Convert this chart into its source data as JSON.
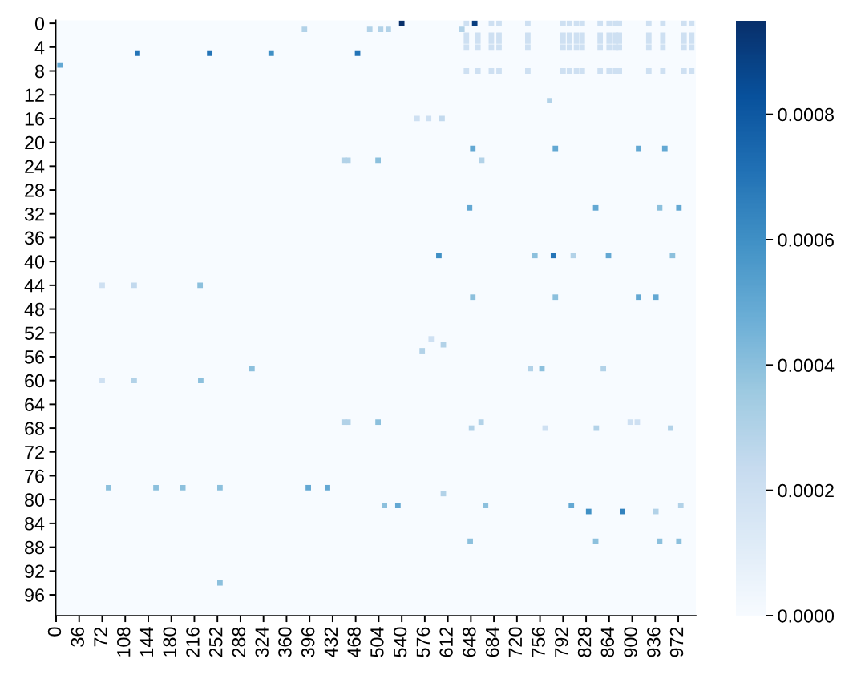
{
  "chart_data": {
    "type": "scatter",
    "marker": "square",
    "x": [
      641,
      680,
      692,
      737,
      792,
      802,
      813,
      822,
      850,
      864,
      874,
      880,
      926,
      948,
      981,
      993,
      641,
      659,
      680,
      692,
      737,
      792,
      802,
      813,
      822,
      850,
      864,
      874,
      880,
      926,
      948,
      981,
      993,
      641,
      659,
      680,
      692,
      737,
      792,
      802,
      813,
      822,
      850,
      864,
      874,
      880,
      926,
      948,
      981,
      993,
      641,
      659,
      680,
      692,
      737,
      792,
      802,
      813,
      822,
      850,
      864,
      874,
      880,
      926,
      948,
      981,
      993,
      641,
      659,
      680,
      692,
      737,
      792,
      802,
      813,
      822,
      850,
      864,
      874,
      880,
      926,
      948,
      981,
      993,
      127,
      240,
      336,
      6,
      225,
      122,
      72,
      540,
      654,
      471,
      388,
      490,
      507,
      519,
      634,
      651,
      503,
      450,
      456,
      603,
      646,
      598,
      651,
      665,
      564,
      582,
      780,
      910,
      951,
      843,
      943,
      973,
      777,
      748,
      808,
      863,
      963,
      780,
      910,
      937,
      771,
      122,
      226,
      72,
      306,
      82,
      156,
      198,
      256,
      256,
      450,
      456,
      503,
      649,
      664,
      394,
      424,
      513,
      534,
      671,
      647,
      605,
      572,
      605,
      586,
      741,
      759,
      855,
      805,
      832,
      885,
      937,
      976,
      843,
      943,
      973,
      897,
      908,
      764,
      844,
      960
    ],
    "values": [
      0,
      0,
      0,
      0,
      0,
      0,
      0,
      0,
      0,
      0,
      0,
      0,
      0,
      0,
      0,
      0,
      2,
      2,
      2,
      2,
      2,
      2,
      2,
      2,
      2,
      2,
      2,
      2,
      2,
      2,
      2,
      2,
      2,
      3,
      3,
      3,
      3,
      3,
      3,
      3,
      3,
      3,
      3,
      3,
      3,
      3,
      3,
      3,
      3,
      3,
      4,
      4,
      4,
      4,
      4,
      4,
      4,
      4,
      4,
      4,
      4,
      4,
      4,
      4,
      4,
      4,
      4,
      8,
      8,
      8,
      8,
      8,
      8,
      8,
      8,
      8,
      8,
      8,
      8,
      8,
      8,
      8,
      8,
      8,
      5,
      5,
      5,
      7,
      44,
      44,
      44,
      0,
      0,
      5,
      1,
      1,
      1,
      1,
      1,
      21,
      23,
      23,
      23,
      16,
      31,
      39,
      46,
      23,
      16,
      16,
      21,
      21,
      21,
      31,
      31,
      31,
      39,
      39,
      39,
      39,
      39,
      46,
      46,
      46,
      13,
      60,
      60,
      60,
      58,
      78,
      78,
      78,
      78,
      94,
      67,
      67,
      67,
      68,
      67,
      78,
      78,
      81,
      81,
      81,
      87,
      79,
      55,
      54,
      53,
      58,
      58,
      58,
      81,
      82,
      82,
      82,
      81,
      87,
      87,
      87,
      67,
      67,
      68,
      68,
      68
    ],
    "cvalues": [
      0.0002,
      0.0002,
      0.0002,
      0.0002,
      0.0002,
      0.0002,
      0.0002,
      0.0002,
      0.0002,
      0.0002,
      0.0002,
      0.0002,
      0.0002,
      0.0002,
      0.0002,
      0.0002,
      0.0002,
      0.0002,
      0.0002,
      0.0002,
      0.0002,
      0.0002,
      0.0002,
      0.0002,
      0.0002,
      0.0002,
      0.0002,
      0.0002,
      0.0002,
      0.0002,
      0.0002,
      0.0002,
      0.0002,
      0.0002,
      0.0002,
      0.0002,
      0.0002,
      0.0002,
      0.0002,
      0.0002,
      0.0002,
      0.0002,
      0.0002,
      0.0002,
      0.0002,
      0.0002,
      0.0002,
      0.0002,
      0.0002,
      0.0002,
      0.0002,
      0.0002,
      0.0002,
      0.0002,
      0.0002,
      0.0002,
      0.0002,
      0.0002,
      0.0002,
      0.0002,
      0.0002,
      0.0002,
      0.0002,
      0.0002,
      0.0002,
      0.0002,
      0.0002,
      0.0002,
      0.0002,
      0.0002,
      0.0002,
      0.0002,
      0.0002,
      0.0002,
      0.0002,
      0.0002,
      0.0002,
      0.0002,
      0.0002,
      0.0002,
      0.0002,
      0.0002,
      0.0002,
      0.0002,
      0.0007,
      0.0007,
      0.0006,
      0.0005,
      0.0004,
      0.00025,
      0.0002,
      0.00095,
      0.0009,
      0.0007,
      0.0003,
      0.0003,
      0.0003,
      0.0003,
      0.0003,
      0.0005,
      0.0004,
      0.0003,
      0.0003,
      0.00025,
      0.0005,
      0.0006,
      0.0004,
      0.0003,
      0.0002,
      0.0002,
      0.0005,
      0.0005,
      0.0005,
      0.0005,
      0.0004,
      0.0005,
      0.0007,
      0.0004,
      0.0003,
      0.0005,
      0.0004,
      0.0004,
      0.0005,
      0.0005,
      0.0003,
      0.0003,
      0.0004,
      0.0002,
      0.0004,
      0.0004,
      0.0004,
      0.0004,
      0.0004,
      0.0004,
      0.0003,
      0.0003,
      0.0004,
      0.0003,
      0.0003,
      0.0005,
      0.0005,
      0.0004,
      0.0005,
      0.0004,
      0.0004,
      0.0003,
      0.0003,
      0.0003,
      0.0002,
      0.0003,
      0.0004,
      0.0003,
      0.0005,
      0.0006,
      0.00065,
      0.0003,
      0.0003,
      0.0004,
      0.0004,
      0.0004,
      0.0002,
      0.0002,
      0.0002,
      0.0003,
      0.0003
    ],
    "xlim": [
      -0.5,
      999.5
    ],
    "ylim": [
      99.5,
      -0.5
    ],
    "xticks": [
      0,
      36,
      72,
      108,
      144,
      180,
      216,
      252,
      288,
      324,
      360,
      396,
      432,
      468,
      504,
      540,
      576,
      612,
      648,
      684,
      720,
      756,
      792,
      828,
      864,
      900,
      936,
      972
    ],
    "yticks": [
      0,
      4,
      8,
      12,
      16,
      20,
      24,
      28,
      32,
      36,
      40,
      44,
      48,
      52,
      56,
      60,
      64,
      68,
      72,
      76,
      80,
      84,
      88,
      92,
      96
    ],
    "clim": [
      0,
      0.00095
    ],
    "cticks": [
      {
        "value": 0,
        "label": "0.0000"
      },
      {
        "value": 0.0002,
        "label": "0.0002"
      },
      {
        "value": 0.0004,
        "label": "0.0004"
      },
      {
        "value": 0.0006,
        "label": "0.0006"
      },
      {
        "value": 0.0008,
        "label": "0.0008"
      }
    ]
  }
}
